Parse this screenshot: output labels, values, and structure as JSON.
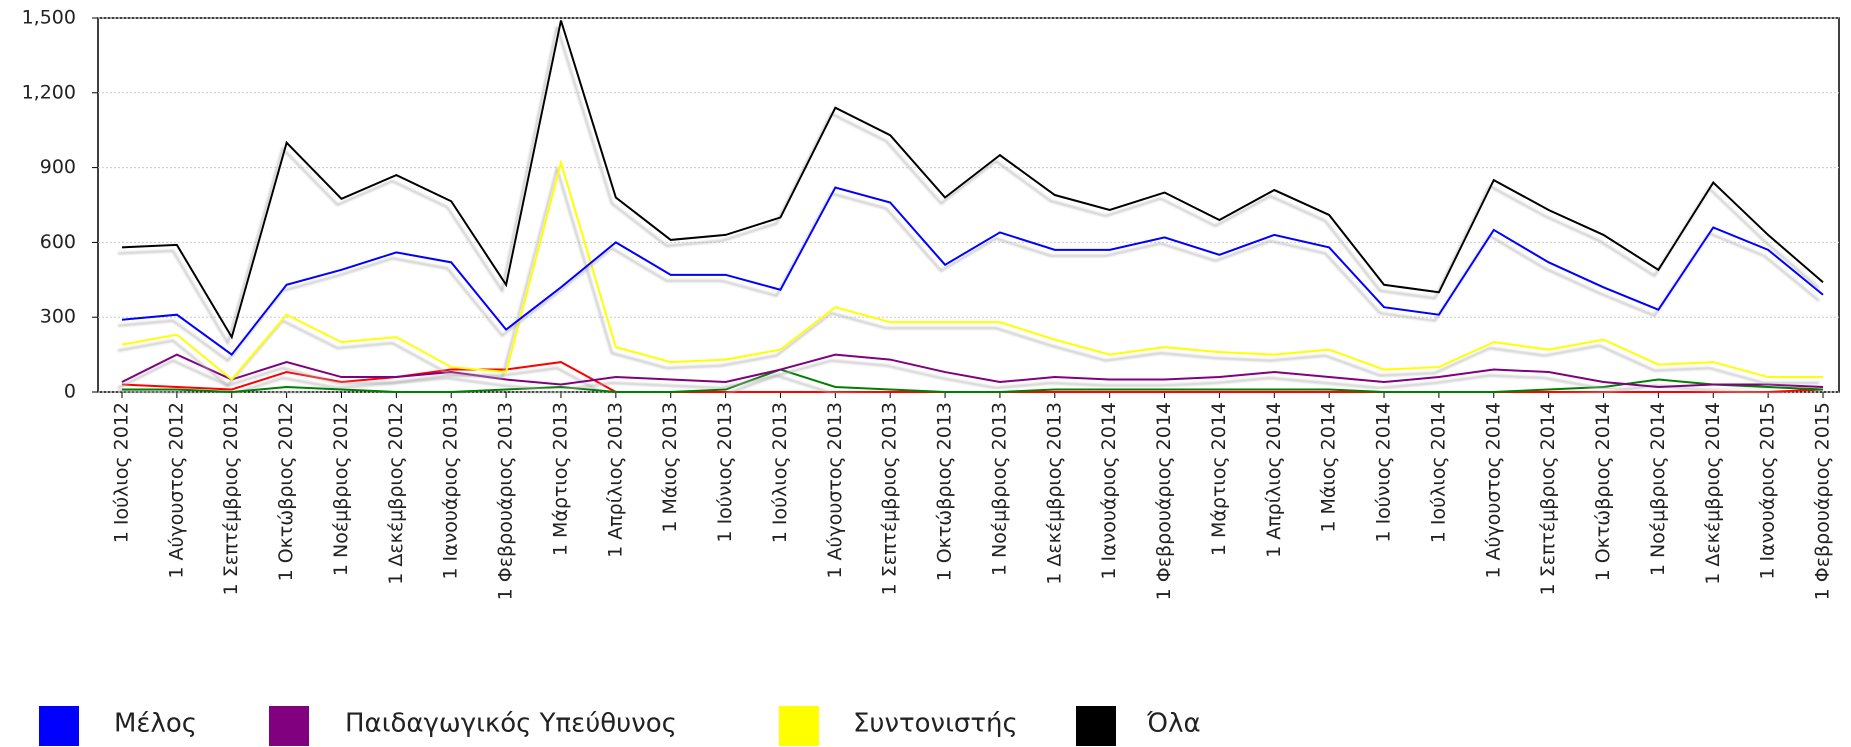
{
  "chart_data": {
    "type": "line",
    "categories": [
      "1 Ιούλιος 2012",
      "1 Αύγουστος 2012",
      "1 Σεπτέμβριος 2012",
      "1 Οκτώβριος 2012",
      "1 Νοέμβριος 2012",
      "1 Δεκέμβριος 2012",
      "1 Ιανουάριος 2013",
      "1 Φεβρουάριος 2013",
      "1 Μάρτιος 2013",
      "1 Απρίλιος 2013",
      "1 Μάιος 2013",
      "1 Ιούνιος 2013",
      "1 Ιούλιος 2013",
      "1 Αύγουστος 2013",
      "1 Σεπτέμβριος 2013",
      "1 Οκτώβριος 2013",
      "1 Νοέμβριος 2013",
      "1 Δεκέμβριος 2013",
      "1 Ιανουάριος 2014",
      "1 Φεβρουάριος 2014",
      "1 Μάρτιος 2014",
      "1 Απρίλιος 2014",
      "1 Μάιος 2014",
      "1 Ιούνιος 2014",
      "1 Ιούλιος 2014",
      "1 Αύγουστος 2014",
      "1 Σεπτέμβριος 2014",
      "1 Οκτώβριος 2014",
      "1 Νοέμβριος 2014",
      "1 Δεκέμβριος 2014",
      "1 Ιανουάριος 2015",
      "1 Φεβρουάριος 2015"
    ],
    "series": [
      {
        "color": "#ff0000",
        "values": [
          30,
          20,
          10,
          80,
          40,
          60,
          90,
          90,
          120,
          0,
          0,
          0,
          0,
          0,
          0,
          0,
          0,
          0,
          0,
          0,
          0,
          0,
          0,
          0,
          0,
          0,
          0,
          0,
          0,
          0,
          0,
          10
        ]
      },
      {
        "color": "#008000",
        "values": [
          10,
          10,
          0,
          20,
          10,
          0,
          0,
          10,
          20,
          0,
          0,
          10,
          90,
          20,
          10,
          0,
          0,
          10,
          10,
          10,
          10,
          10,
          10,
          0,
          0,
          0,
          10,
          20,
          50,
          30,
          20,
          10
        ]
      },
      {
        "name": "Παιδαγωγικός Υπεύθυνος",
        "color": "#800080",
        "values": [
          40,
          150,
          50,
          120,
          60,
          60,
          80,
          50,
          30,
          60,
          50,
          40,
          90,
          150,
          130,
          80,
          40,
          60,
          50,
          50,
          60,
          80,
          60,
          40,
          60,
          90,
          80,
          40,
          20,
          30,
          30,
          20
        ]
      },
      {
        "name": "Συντονιστής",
        "color": "#ffff00",
        "values": [
          190,
          230,
          50,
          310,
          200,
          220,
          100,
          80,
          920,
          180,
          120,
          130,
          170,
          340,
          280,
          280,
          280,
          210,
          150,
          180,
          160,
          150,
          170,
          90,
          100,
          200,
          170,
          210,
          110,
          120,
          60,
          60
        ]
      },
      {
        "name": "Μέλος",
        "color": "#0000ff",
        "values": [
          290,
          310,
          150,
          430,
          490,
          560,
          520,
          250,
          420,
          600,
          470,
          470,
          410,
          820,
          760,
          510,
          640,
          570,
          570,
          620,
          550,
          630,
          580,
          340,
          310,
          650,
          520,
          420,
          330,
          660,
          570,
          390
        ]
      },
      {
        "name": "Όλα",
        "color": "#000000",
        "values": [
          580,
          590,
          220,
          1000,
          775,
          870,
          765,
          430,
          1490,
          780,
          610,
          630,
          700,
          1140,
          1030,
          780,
          950,
          790,
          730,
          800,
          690,
          810,
          710,
          430,
          400,
          850,
          730,
          630,
          490,
          840,
          630,
          440
        ]
      }
    ],
    "ylim": [
      0,
      1500
    ],
    "yticks": [
      0,
      300,
      600,
      900,
      {
        "value": 1200,
        "label": "1,200"
      },
      {
        "value": 1500,
        "label": "1,500"
      }
    ],
    "grid": true
  }
}
